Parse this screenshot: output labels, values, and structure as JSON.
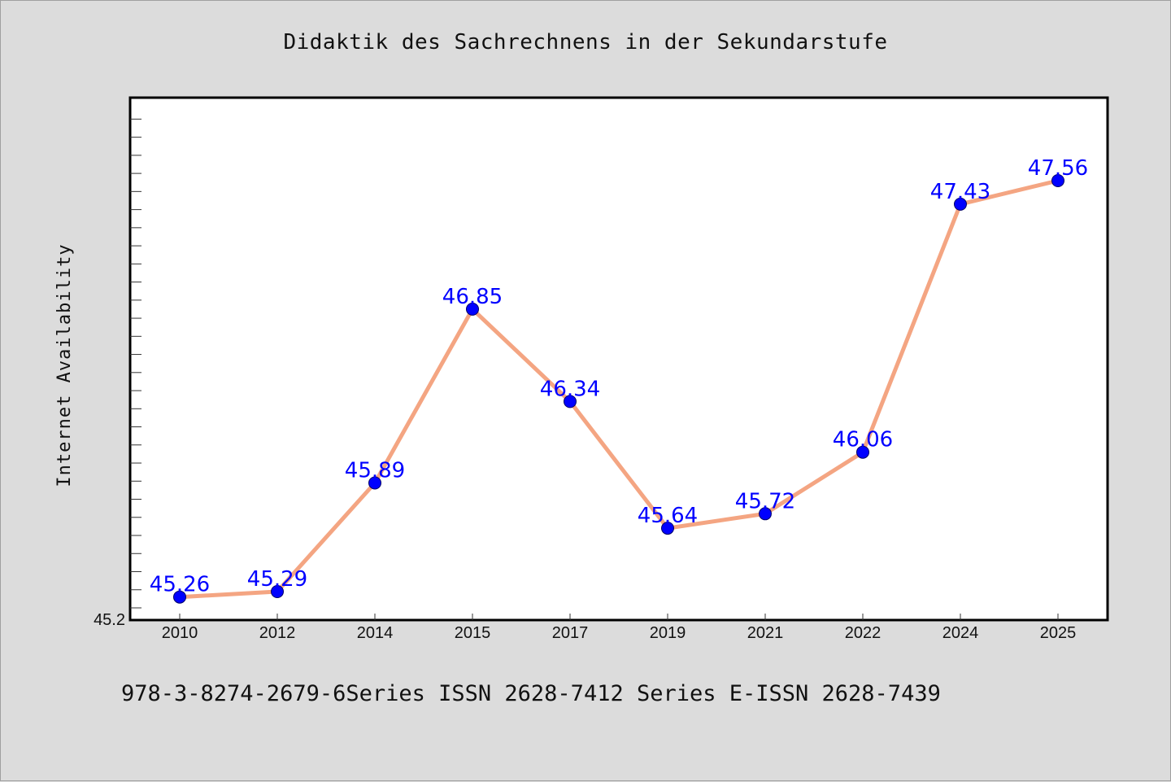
{
  "chart_data": {
    "type": "line",
    "title": "Didaktik des Sachrechnens in der Sekundarstufe",
    "xlabel": "",
    "ylabel": "Internet Availability",
    "categories": [
      "2010",
      "2012",
      "2014",
      "2015",
      "2017",
      "2019",
      "2021",
      "2022",
      "2024",
      "2025"
    ],
    "series": [
      {
        "values": [
          45.26,
          45.29,
          45.89,
          46.85,
          46.34,
          45.64,
          45.72,
          46.06,
          47.43,
          47.56
        ]
      }
    ],
    "data_labels": [
      "45.26",
      "45.29",
      "45.89",
      "46.85",
      "46.34",
      "45.64",
      "45.72",
      "46.06",
      "47.43",
      "47.56"
    ],
    "ylim": [
      45.2,
      48.0
    ],
    "y_tick_labels": [
      "45.2"
    ],
    "grid": false,
    "line_color": "#f4a582",
    "marker_color": "#0000ff",
    "label_color": "#0000ff"
  },
  "footer": {
    "text": "978-3-8274-2679-6Series ISSN 2628-7412 Series E-ISSN 2628-7439"
  }
}
